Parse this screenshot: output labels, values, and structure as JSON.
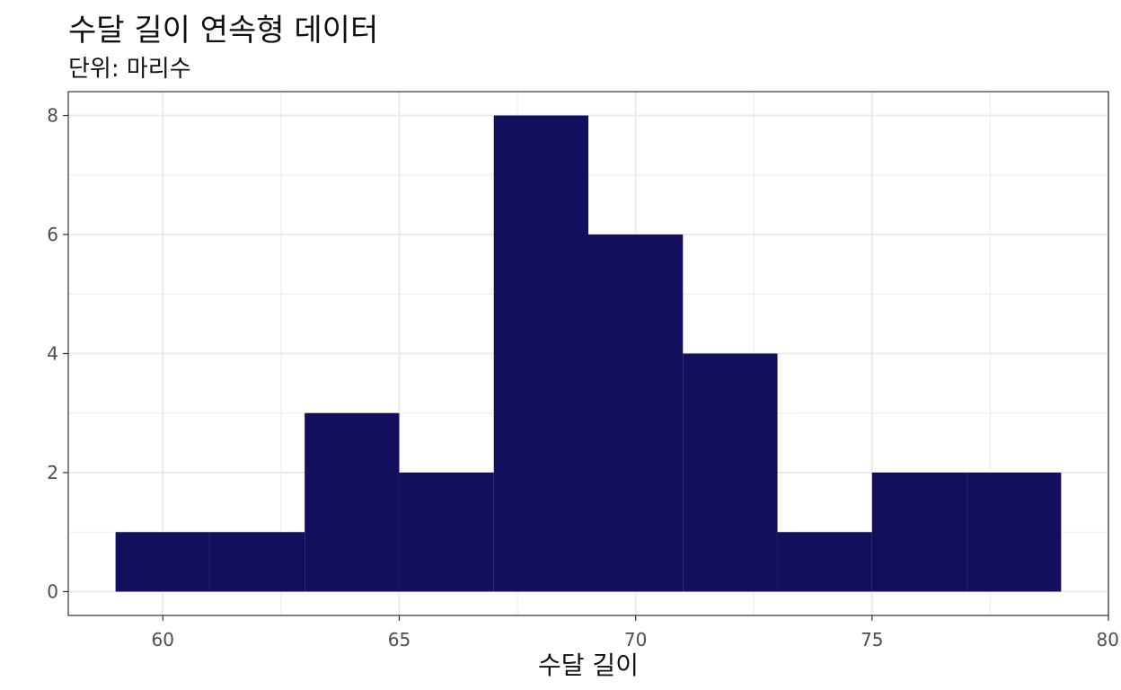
{
  "chart_data": {
    "type": "bar",
    "title": "수달 길이 연속형 데이터",
    "subtitle": "단위: 마리수",
    "xlabel": "수달 길이",
    "ylabel": "",
    "bins": [
      {
        "x0": 59,
        "x1": 61,
        "count": 1
      },
      {
        "x0": 61,
        "x1": 63,
        "count": 1
      },
      {
        "x0": 63,
        "x1": 65,
        "count": 3
      },
      {
        "x0": 65,
        "x1": 67,
        "count": 2
      },
      {
        "x0": 67,
        "x1": 69,
        "count": 8
      },
      {
        "x0": 69,
        "x1": 71,
        "count": 6
      },
      {
        "x0": 71,
        "x1": 73,
        "count": 4
      },
      {
        "x0": 73,
        "x1": 75,
        "count": 1
      },
      {
        "x0": 75,
        "x1": 77,
        "count": 2
      },
      {
        "x0": 77,
        "x1": 79,
        "count": 2
      }
    ],
    "xlim": [
      58,
      80
    ],
    "ylim": [
      -0.4,
      8.4
    ],
    "x_ticks": [
      60,
      65,
      70,
      75,
      80
    ],
    "x_tick_labels": [
      "60",
      "65",
      "70",
      "75",
      "80"
    ],
    "y_ticks": [
      0,
      2,
      4,
      6,
      8
    ],
    "y_tick_labels": [
      "0",
      "2",
      "4",
      "6",
      "8"
    ],
    "grid": true,
    "bar_color": "#140f5c",
    "grid_color": "#ebebeb"
  }
}
